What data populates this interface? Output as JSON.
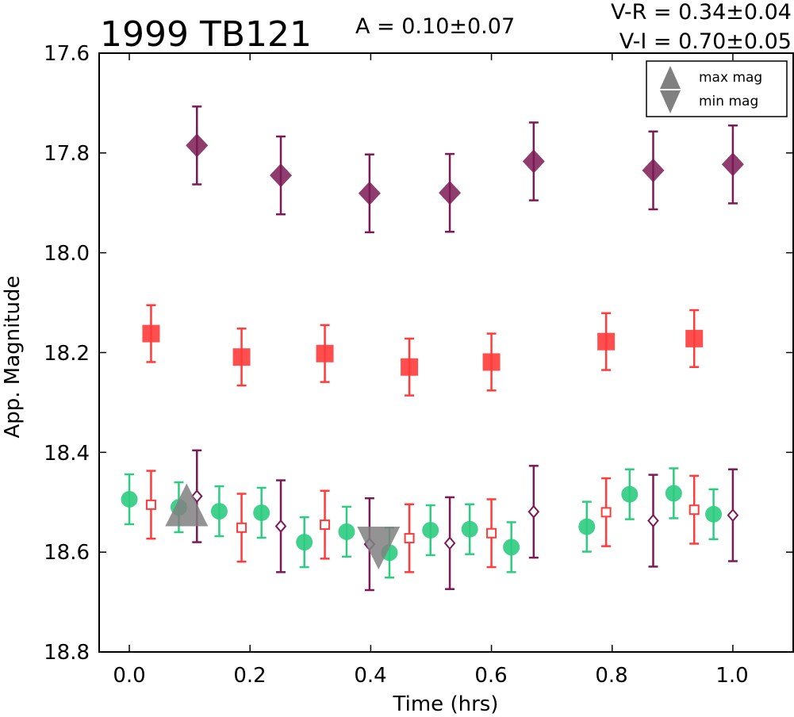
{
  "chart_data": {
    "type": "scatter",
    "title": "1999 TB121",
    "annotations": {
      "amplitude": "A  = 0.10±0.07",
      "v_r": "V-R = 0.34±0.04",
      "v_i": "V-I  = 0.70±0.05"
    },
    "xlabel": "Time (hrs)",
    "ylabel": "App. Magnitude",
    "xlim": [
      -0.05,
      1.1
    ],
    "ylim": [
      18.8,
      17.6
    ],
    "y_inverted": true,
    "xticks": [
      "0.0",
      "0.2",
      "0.4",
      "0.6",
      "0.8",
      "1.0"
    ],
    "yticks": [
      "17.6",
      "17.8",
      "18.0",
      "18.2",
      "18.4",
      "18.6",
      "18.8"
    ],
    "grid": false,
    "legend": {
      "placement": "top-right",
      "entries": [
        {
          "label": "max mag",
          "marker": "triangle-up",
          "color": "#808080"
        },
        {
          "label": "min mag",
          "marker": "triangle-down",
          "color": "#808080"
        }
      ]
    },
    "series": [
      {
        "marker": "diamond-filled",
        "color": "#7b1a55",
        "error": 0.078,
        "x": [
          0.112,
          0.251,
          0.398,
          0.531,
          0.67,
          0.868,
          1.0
        ],
        "y": [
          17.785,
          17.845,
          17.881,
          17.88,
          17.817,
          17.835,
          17.823
        ]
      },
      {
        "marker": "square-filled",
        "color": "#ff3b3b",
        "error": 0.057,
        "x": [
          0.036,
          0.186,
          0.324,
          0.464,
          0.6,
          0.79,
          0.936
        ],
        "y": [
          18.162,
          18.209,
          18.202,
          18.229,
          18.219,
          18.178,
          18.172
        ]
      },
      {
        "marker": "circle-filled",
        "color": "#2ecc80",
        "error": 0.05,
        "x": [
          0.0,
          0.082,
          0.149,
          0.219,
          0.29,
          0.36,
          0.431,
          0.499,
          0.564,
          0.633,
          0.758,
          0.829,
          0.902,
          0.968
        ],
        "y": [
          18.494,
          18.51,
          18.518,
          18.521,
          18.58,
          18.559,
          18.601,
          18.556,
          18.554,
          18.59,
          18.549,
          18.484,
          18.482,
          18.524
        ]
      },
      {
        "marker": "square-open",
        "color": "#ff3b3b",
        "error": 0.068,
        "x": [
          0.036,
          0.186,
          0.324,
          0.464,
          0.6,
          0.79,
          0.936
        ],
        "y": [
          18.505,
          18.551,
          18.545,
          18.572,
          18.562,
          18.52,
          18.515
        ]
      },
      {
        "marker": "diamond-open",
        "color": "#7b1a55",
        "error": 0.092,
        "x": [
          0.112,
          0.251,
          0.398,
          0.531,
          0.67,
          0.868,
          1.0
        ],
        "y": [
          18.488,
          18.548,
          18.584,
          18.582,
          18.519,
          18.537,
          18.526
        ]
      },
      {
        "marker": "triangle-up",
        "color": "#808080",
        "x": [
          0.095
        ],
        "y": [
          18.51
        ]
      },
      {
        "marker": "triangle-down",
        "color": "#808080",
        "x": [
          0.413
        ],
        "y": [
          18.587
        ]
      }
    ]
  }
}
